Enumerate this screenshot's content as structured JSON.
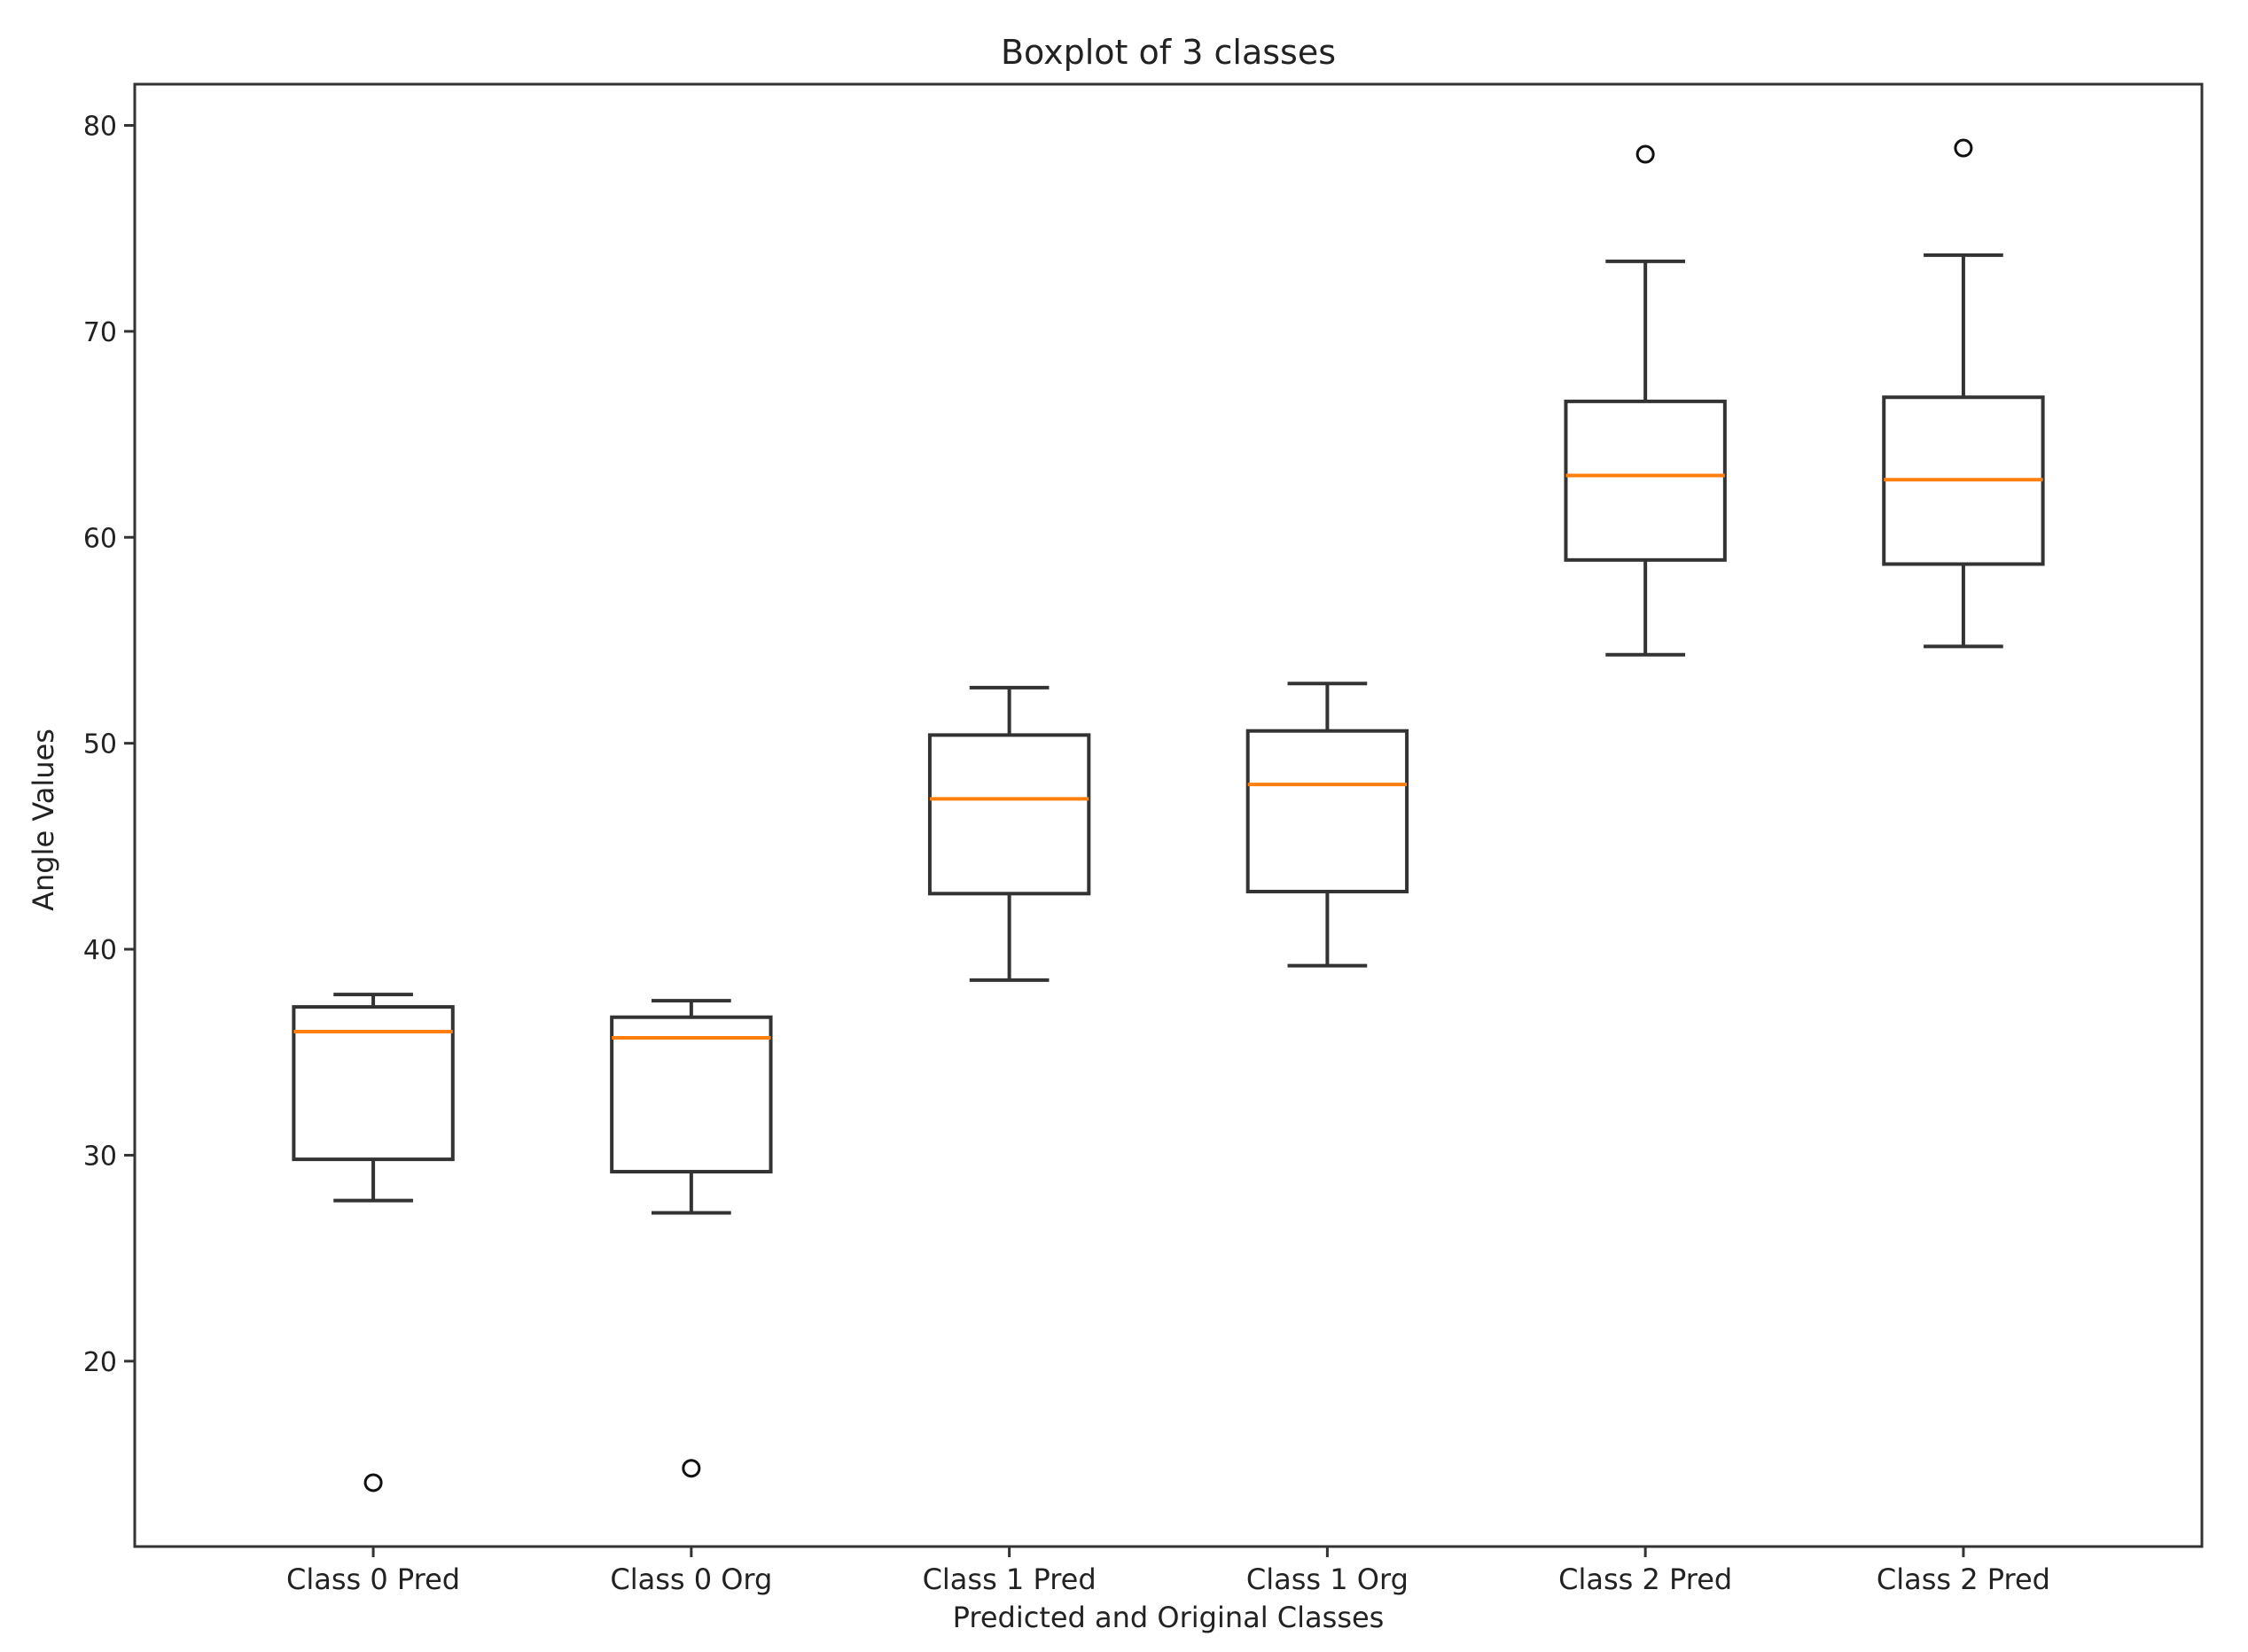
{
  "chart_data": {
    "type": "boxplot",
    "title": "Boxplot of 3 classes",
    "xlabel": "Predicted and Original Classes",
    "ylabel": "Angle Values",
    "ylim": [
      11,
      82
    ],
    "yticks": [
      20,
      30,
      40,
      50,
      60,
      70,
      80
    ],
    "grid": false,
    "colors": {
      "box": "#333333",
      "median": "#ff7f0e",
      "axis": "#333333"
    },
    "boxes": [
      {
        "label": "Class 0 Pred",
        "whislo": 27.8,
        "q1": 29.8,
        "med": 36.0,
        "q3": 37.2,
        "whishi": 37.8,
        "fliers": [
          14.1
        ]
      },
      {
        "label": "Class 0 Org",
        "whislo": 27.2,
        "q1": 29.2,
        "med": 35.7,
        "q3": 36.7,
        "whishi": 37.5,
        "fliers": [
          14.8
        ]
      },
      {
        "label": "Class 1 Pred",
        "whislo": 38.5,
        "q1": 42.7,
        "med": 47.3,
        "q3": 50.4,
        "whishi": 52.7,
        "fliers": []
      },
      {
        "label": "Class 1 Org",
        "whislo": 39.2,
        "q1": 42.8,
        "med": 48.0,
        "q3": 50.6,
        "whishi": 52.9,
        "fliers": []
      },
      {
        "label": "Class 2 Pred",
        "whislo": 54.3,
        "q1": 58.9,
        "med": 63.0,
        "q3": 66.6,
        "whishi": 73.4,
        "fliers": [
          78.6
        ]
      },
      {
        "label": "Class 2 Pred",
        "whislo": 54.7,
        "q1": 58.7,
        "med": 62.8,
        "q3": 66.8,
        "whishi": 73.7,
        "fliers": [
          78.9
        ]
      }
    ]
  }
}
